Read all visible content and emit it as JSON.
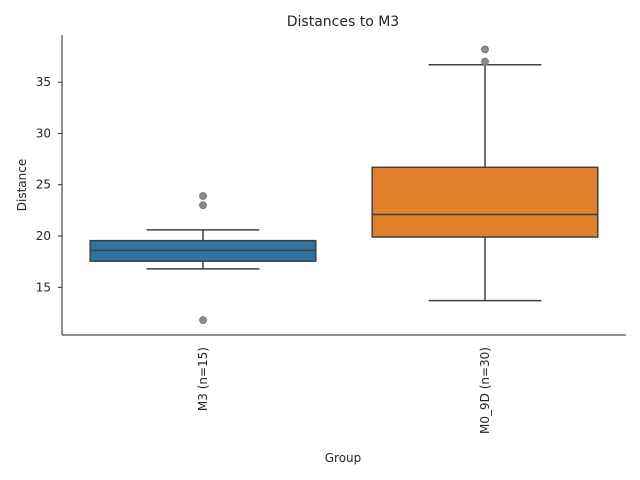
{
  "chart_data": {
    "type": "box",
    "title": "Distances to M3",
    "xlabel": "Group",
    "ylabel": "Distance",
    "categories": [
      "M3 (n=15)",
      "M0_9D (n=30)"
    ],
    "yticks": [
      15,
      20,
      25,
      30,
      35
    ],
    "ylim": [
      10.35,
      39.6
    ],
    "grid": false,
    "boxes": [
      {
        "category": "M3 (n=15)",
        "color": "#3274a1",
        "whisker_low": 16.8,
        "q1": 17.55,
        "median": 18.6,
        "q3": 19.55,
        "whisker_high": 20.6,
        "outliers": [
          23.9,
          23.0,
          11.8
        ]
      },
      {
        "category": "M0_9D (n=30)",
        "color": "#e1812c",
        "whisker_low": 13.7,
        "q1": 19.9,
        "median": 22.1,
        "q3": 26.7,
        "whisker_high": 36.7,
        "outliers": [
          38.2,
          37.0
        ]
      }
    ]
  }
}
